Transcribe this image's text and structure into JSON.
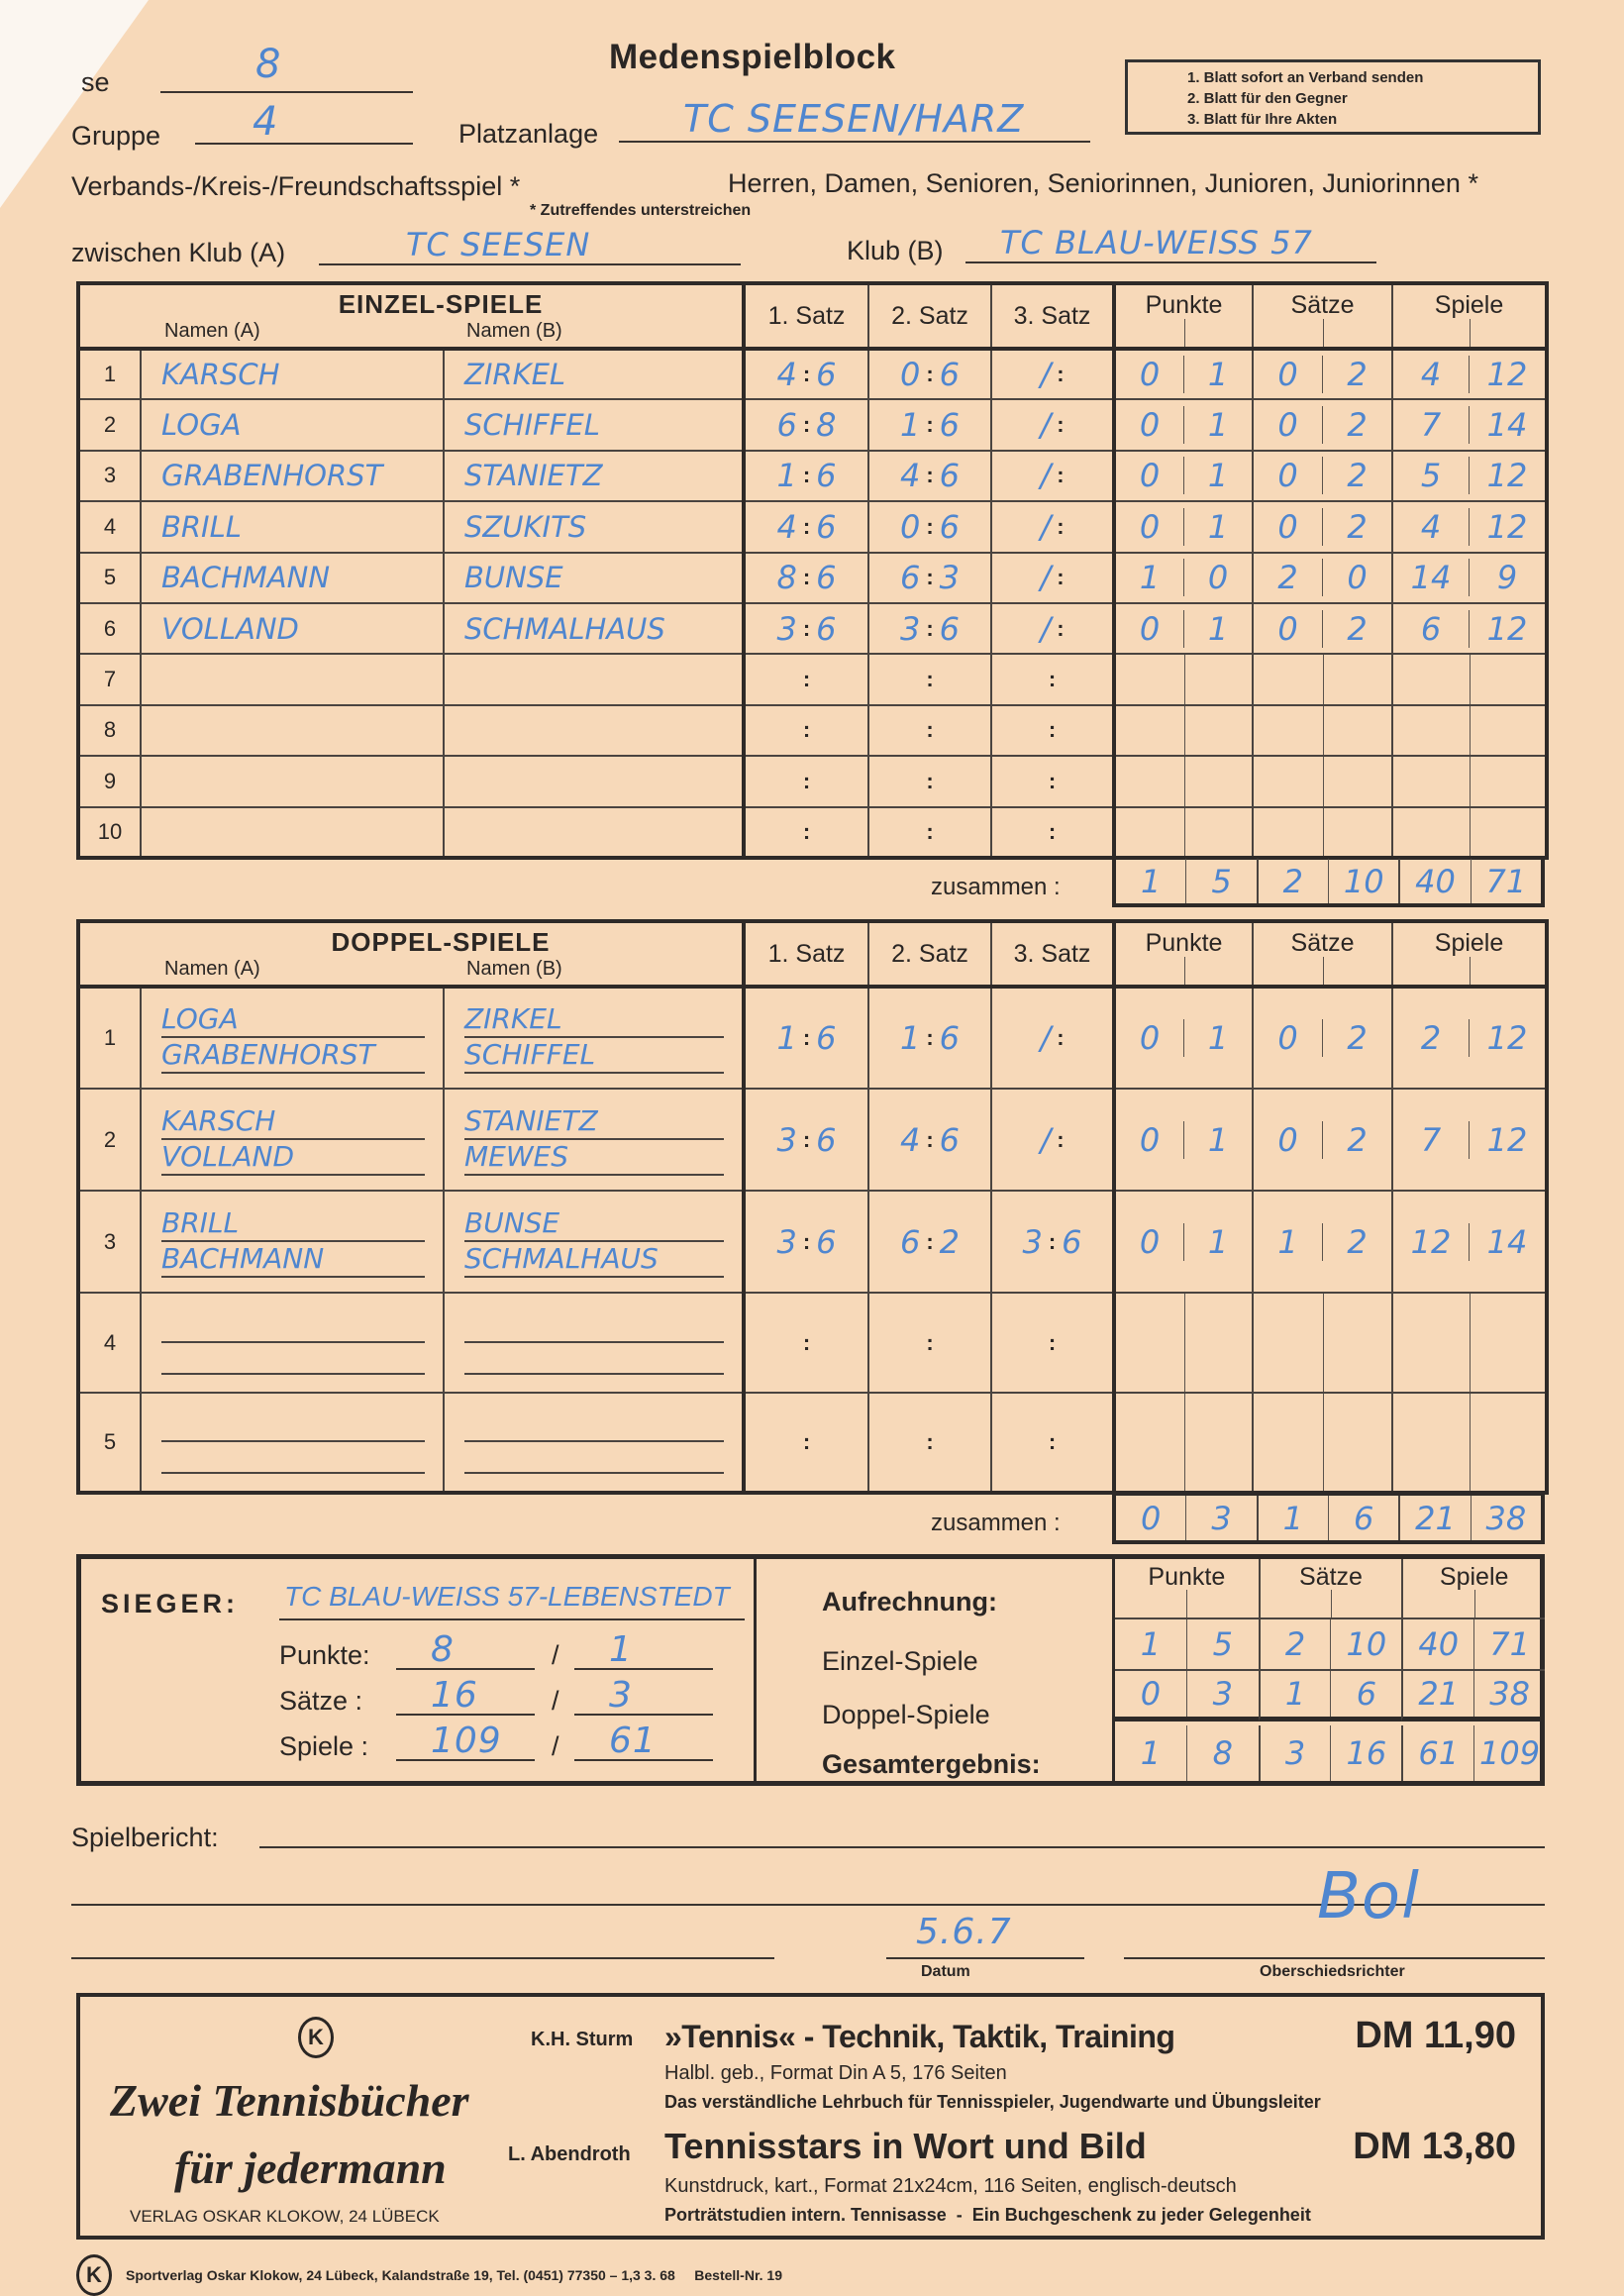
{
  "header": {
    "title": "Medenspielblock",
    "notice": [
      "1. Blatt sofort an Verband senden",
      "2. Blatt für den Gegner",
      "3. Blatt für Ihre Akten"
    ],
    "klasse_label": "se",
    "klasse_value": "8",
    "gruppe_label": "Gruppe",
    "gruppe_value": "4",
    "platzanlage_label": "Platzanlage",
    "platzanlage_value": "TC SEESEN/HARZ",
    "spielart": "Verbands-/Kreis-/Freundschaftsspiel *",
    "kategorien": "Herren, Damen, Senioren, Seniorinnen, Junioren, Juniorinnen *",
    "footnote": "* Zutreffendes unterstreichen",
    "klub_a_label": "zwischen Klub (A)",
    "klub_a_value": "TC SEESEN",
    "klub_b_label": "Klub (B)",
    "klub_b_value": "TC BLAU-WEISS 57"
  },
  "form": {
    "colon": ":",
    "zusammen": "zusammen :"
  },
  "einzel": {
    "title": "EINZEL-SPIELE",
    "col_a": "Namen (A)",
    "col_b": "Namen (B)",
    "sets": [
      "1. Satz",
      "2. Satz",
      "3. Satz"
    ],
    "totals": [
      "Punkte",
      "Sätze",
      "Spiele"
    ],
    "rows": [
      {
        "n": "1",
        "a": "KARSCH",
        "b": "ZIRKEL",
        "s1": [
          "4",
          "6"
        ],
        "s2": [
          "0",
          "6"
        ],
        "s3": "/",
        "punkte": [
          "0",
          "1"
        ],
        "saetze": [
          "0",
          "2"
        ],
        "spiele": [
          "4",
          "12"
        ]
      },
      {
        "n": "2",
        "a": "LOGA",
        "b": "SCHIFFEL",
        "s1": [
          "6",
          "8"
        ],
        "s2": [
          "1",
          "6"
        ],
        "s3": "/",
        "punkte": [
          "0",
          "1"
        ],
        "saetze": [
          "0",
          "2"
        ],
        "spiele": [
          "7",
          "14"
        ]
      },
      {
        "n": "3",
        "a": "GRABENHORST",
        "b": "STANIETZ",
        "s1": [
          "1",
          "6"
        ],
        "s2": [
          "4",
          "6"
        ],
        "s3": "/",
        "punkte": [
          "0",
          "1"
        ],
        "saetze": [
          "0",
          "2"
        ],
        "spiele": [
          "5",
          "12"
        ]
      },
      {
        "n": "4",
        "a": "BRILL",
        "b": "SZUKITS",
        "s1": [
          "4",
          "6"
        ],
        "s2": [
          "0",
          "6"
        ],
        "s3": "/",
        "punkte": [
          "0",
          "1"
        ],
        "saetze": [
          "0",
          "2"
        ],
        "spiele": [
          "4",
          "12"
        ]
      },
      {
        "n": "5",
        "a": "BACHMANN",
        "b": "BUNSE",
        "s1": [
          "8",
          "6"
        ],
        "s2": [
          "6",
          "3"
        ],
        "s3": "/",
        "punkte": [
          "1",
          "0"
        ],
        "saetze": [
          "2",
          "0"
        ],
        "spiele": [
          "14",
          "9"
        ]
      },
      {
        "n": "6",
        "a": "VOLLAND",
        "b": "SCHMALHAUS",
        "s1": [
          "3",
          "6"
        ],
        "s2": [
          "3",
          "6"
        ],
        "s3": "/",
        "punkte": [
          "0",
          "1"
        ],
        "saetze": [
          "0",
          "2"
        ],
        "spiele": [
          "6",
          "12"
        ]
      },
      {
        "n": "7"
      },
      {
        "n": "8"
      },
      {
        "n": "9"
      },
      {
        "n": "10"
      }
    ],
    "sum": {
      "punkte": [
        "1",
        "5"
      ],
      "saetze": [
        "2",
        "10"
      ],
      "spiele": [
        "40",
        "71"
      ]
    }
  },
  "doppel": {
    "title": "DOPPEL-SPIELE",
    "col_a": "Namen (A)",
    "col_b": "Namen (B)",
    "sets": [
      "1. Satz",
      "2. Satz",
      "3. Satz"
    ],
    "totals": [
      "Punkte",
      "Sätze",
      "Spiele"
    ],
    "rows": [
      {
        "n": "1",
        "a": [
          "LOGA",
          "GRABENHORST"
        ],
        "b": [
          "ZIRKEL",
          "SCHIFFEL"
        ],
        "s1": [
          "1",
          "6"
        ],
        "s2": [
          "1",
          "6"
        ],
        "s3": "/",
        "punkte": [
          "0",
          "1"
        ],
        "saetze": [
          "0",
          "2"
        ],
        "spiele": [
          "2",
          "12"
        ]
      },
      {
        "n": "2",
        "a": [
          "KARSCH",
          "VOLLAND"
        ],
        "b": [
          "STANIETZ",
          "MEWES"
        ],
        "s1": [
          "3",
          "6"
        ],
        "s2": [
          "4",
          "6"
        ],
        "s3": "/",
        "punkte": [
          "0",
          "1"
        ],
        "saetze": [
          "0",
          "2"
        ],
        "spiele": [
          "7",
          "12"
        ]
      },
      {
        "n": "3",
        "a": [
          "BRILL",
          "BACHMANN"
        ],
        "b": [
          "BUNSE",
          "SCHMALHAUS"
        ],
        "s1": [
          "3",
          "6"
        ],
        "s2": [
          "6",
          "2"
        ],
        "s3": [
          "3",
          "6"
        ],
        "punkte": [
          "0",
          "1"
        ],
        "saetze": [
          "1",
          "2"
        ],
        "spiele": [
          "12",
          "14"
        ]
      },
      {
        "n": "4"
      },
      {
        "n": "5"
      }
    ],
    "sum": {
      "punkte": [
        "0",
        "3"
      ],
      "saetze": [
        "1",
        "6"
      ],
      "spiele": [
        "21",
        "38"
      ]
    }
  },
  "sieger": {
    "label": "SIEGER:",
    "value": "TC BLAU-WEISS 57-LEBENSTEDT",
    "punkte_label": "Punkte:",
    "punkte": [
      "8",
      "1"
    ],
    "saetze_label": "Sätze :",
    "saetze": [
      "16",
      "3"
    ],
    "spiele_label": "Spiele :",
    "spiele": [
      "109",
      "61"
    ],
    "slash": "/",
    "aufrechnung": "Aufrechnung:",
    "einzel_label": "Einzel-Spiele",
    "doppel_label": "Doppel-Spiele",
    "gesamt_label": "Gesamtergebnis:",
    "totals": [
      "Punkte",
      "Sätze",
      "Spiele"
    ],
    "einzel": {
      "punkte": [
        "1",
        "5"
      ],
      "saetze": [
        "2",
        "10"
      ],
      "spiele": [
        "40",
        "71"
      ]
    },
    "doppel": {
      "punkte": [
        "0",
        "3"
      ],
      "saetze": [
        "1",
        "6"
      ],
      "spiele": [
        "21",
        "38"
      ]
    },
    "gesamt": {
      "punkte": [
        "1",
        "8"
      ],
      "saetze": [
        "3",
        "16"
      ],
      "spiele": [
        "61",
        "109"
      ]
    }
  },
  "bericht": {
    "label": "Spielbericht:",
    "datum_value": "5.6.7",
    "datum_label": "Datum",
    "schiri_label": "Oberschiedsrichter"
  },
  "ad": {
    "logo": "K",
    "slogan1": "Zwei Tennisbücher",
    "slogan2": "für jedermann",
    "verlag": "VERLAG OSKAR KLOKOW, 24 LÜBECK",
    "book1_author": "K.H. Sturm",
    "book1_title": "»Tennis« - Technik, Taktik, Training",
    "book1_price": "DM 11,90",
    "book1_desc1": "Halbl. geb., Format Din A 5, 176 Seiten",
    "book1_desc2": "Das verständliche Lehrbuch für Tennisspieler, Jugendwarte und Übungsleiter",
    "book2_author": "L. Abendroth",
    "book2_title": "Tennisstars in Wort und Bild",
    "book2_price": "DM 13,80",
    "book2_desc1": "Kunstdruck, kart., Format 21x24cm, 116 Seiten, englisch-deutsch",
    "book2_desc2": "Porträtstudien intern. Tennisasse  -  Ein Buchgeschenk zu jeder Gelegenheit"
  },
  "footer": {
    "logo": "K",
    "text": "Sportverlag Oskar Klokow, 24 Lübeck, Kalandstraße 19, Tel. (0451) 77350 – 1,3 3. 68     Bestell-Nr. 19"
  },
  "colors": {
    "paper": "#f7d9b9",
    "ink": "#4f86cf",
    "print": "#2a2624"
  }
}
